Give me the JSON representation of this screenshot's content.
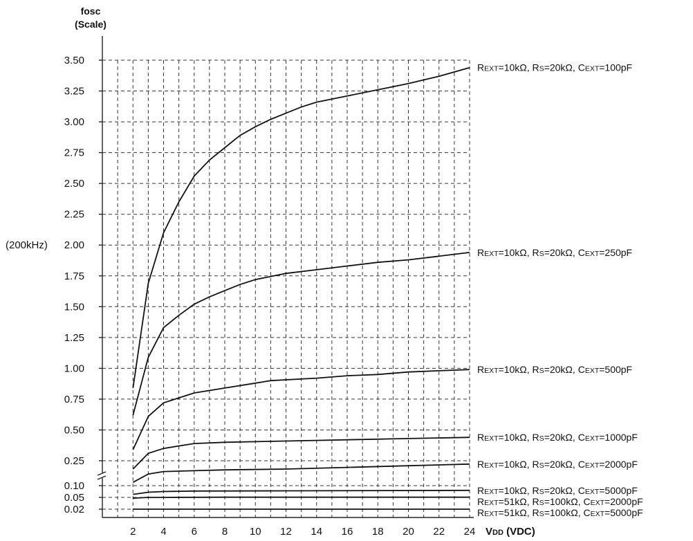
{
  "chart_data": {
    "type": "line",
    "ylabel_line1": "fosc",
    "ylabel_line2": "(Scale)",
    "xlabel": "VDD (VDC)",
    "y_extra_label": "(200kHz)",
    "y_ticks": [
      {
        "value": 0.02,
        "label": "0.02"
      },
      {
        "value": 0.05,
        "label": "0.05"
      },
      {
        "value": 0.1,
        "label": "0.10"
      },
      {
        "value": 0.25,
        "label": "0.25"
      },
      {
        "value": 0.5,
        "label": "0.50"
      },
      {
        "value": 0.75,
        "label": "0.75"
      },
      {
        "value": 1.0,
        "label": "1.00"
      },
      {
        "value": 1.25,
        "label": "1.25"
      },
      {
        "value": 1.5,
        "label": "1.50"
      },
      {
        "value": 1.75,
        "label": "1.75"
      },
      {
        "value": 2.0,
        "label": "2.00"
      },
      {
        "value": 2.25,
        "label": "2.25"
      },
      {
        "value": 2.5,
        "label": "2.50"
      },
      {
        "value": 2.75,
        "label": "2.75"
      },
      {
        "value": 3.0,
        "label": "3.00"
      },
      {
        "value": 3.25,
        "label": "3.25"
      },
      {
        "value": 3.5,
        "label": "3.50"
      }
    ],
    "x_ticks": [
      2,
      4,
      6,
      8,
      10,
      12,
      14,
      16,
      18,
      20,
      22,
      24
    ],
    "x_grid": [
      1,
      2,
      3,
      4,
      5,
      6,
      7,
      8,
      9,
      10,
      11,
      12,
      13,
      14,
      15,
      16,
      17,
      18,
      19,
      20,
      21,
      22,
      23,
      24
    ],
    "xlim": [
      0,
      24
    ],
    "ylim": [
      0,
      3.6
    ],
    "axis_break": true,
    "grid": "dashed",
    "series": [
      {
        "name": "REXT=10kΩ, RS=20kΩ, CEXT=100pF",
        "x": [
          2,
          3,
          4,
          5,
          6,
          7,
          8,
          9,
          10,
          11,
          12,
          13,
          14,
          16,
          18,
          20,
          22,
          24
        ],
        "y": [
          0.84,
          1.69,
          2.1,
          2.35,
          2.56,
          2.69,
          2.79,
          2.89,
          2.96,
          3.02,
          3.07,
          3.12,
          3.16,
          3.21,
          3.26,
          3.31,
          3.37,
          3.44
        ]
      },
      {
        "name": "REXT=10kΩ, RS=20kΩ, CEXT=250pF",
        "x": [
          2,
          3,
          4,
          5,
          6,
          7,
          8,
          9,
          10,
          12,
          14,
          16,
          18,
          20,
          22,
          24
        ],
        "y": [
          0.62,
          1.09,
          1.33,
          1.43,
          1.52,
          1.58,
          1.63,
          1.68,
          1.72,
          1.77,
          1.8,
          1.83,
          1.86,
          1.88,
          1.91,
          1.94
        ]
      },
      {
        "name": "REXT=10kΩ, RS=20kΩ, CEXT=500pF",
        "x": [
          2,
          3,
          4,
          5,
          6,
          8,
          10,
          11,
          14,
          16,
          18,
          20,
          22,
          24
        ],
        "y": [
          0.34,
          0.61,
          0.72,
          0.76,
          0.8,
          0.84,
          0.88,
          0.9,
          0.92,
          0.94,
          0.95,
          0.97,
          0.98,
          0.99
        ]
      },
      {
        "name": "REXT=10kΩ, RS=20kΩ, CEXT=1000pF",
        "x": [
          2,
          3,
          4,
          5,
          6,
          8,
          12,
          16,
          20,
          24
        ],
        "y": [
          0.2,
          0.31,
          0.35,
          0.37,
          0.39,
          0.4,
          0.41,
          0.42,
          0.43,
          0.44
        ]
      },
      {
        "name": "REXT=10kΩ, RS=20kΩ, CEXT=2000pF",
        "x": [
          2,
          3,
          4,
          6,
          8,
          12,
          16,
          20,
          24
        ],
        "y": [
          0.12,
          0.17,
          0.185,
          0.19,
          0.195,
          0.2,
          0.21,
          0.22,
          0.23
        ]
      },
      {
        "name": "REXT=10kΩ, RS=20kΩ, CEXT=5000pF",
        "x": [
          2,
          3,
          4,
          6,
          12,
          24
        ],
        "y": [
          0.063,
          0.072,
          0.075,
          0.077,
          0.078,
          0.08
        ]
      },
      {
        "name": "REXT=51kΩ, RS=100kΩ, CEXT=2000pF",
        "x": [
          2,
          3,
          4,
          8,
          24
        ],
        "y": [
          0.048,
          0.05,
          0.05,
          0.051,
          0.051
        ]
      },
      {
        "name": "REXT=51kΩ, RS=100kΩ, CEXT=5000pF",
        "x": [
          2,
          24
        ],
        "y": [
          0.02,
          0.02
        ]
      }
    ]
  }
}
